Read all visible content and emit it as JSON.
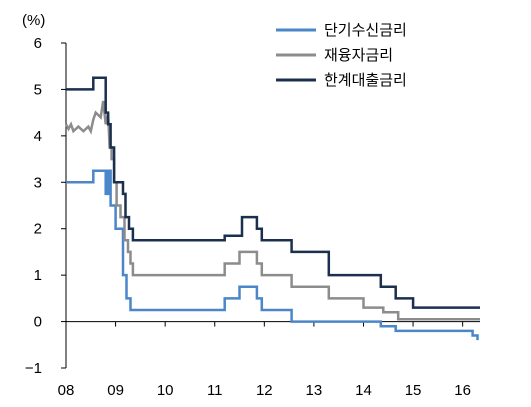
{
  "chart_data": {
    "type": "line",
    "title": "",
    "xlabel": "",
    "ylabel": "(%)",
    "ylim": [
      -1,
      6
    ],
    "xlim": [
      2008,
      2016.35
    ],
    "x_ticks": [
      2008,
      2009,
      2010,
      2011,
      2012,
      2013,
      2014,
      2015,
      2016
    ],
    "x_tick_labels": [
      "08",
      "09",
      "10",
      "11",
      "12",
      "13",
      "14",
      "15",
      "16"
    ],
    "y_ticks": [
      -1,
      0,
      1,
      2,
      3,
      4,
      5,
      6
    ],
    "y_tick_labels": [
      "−1",
      "0",
      "1",
      "2",
      "3",
      "4",
      "5",
      "6"
    ],
    "grid": false,
    "legend_position": "top-right",
    "series": [
      {
        "name": "단기수신금리",
        "color": "#4a86c8",
        "width": 2.5,
        "points": [
          [
            2008.0,
            3.0
          ],
          [
            2008.55,
            3.0
          ],
          [
            2008.55,
            3.25
          ],
          [
            2008.8,
            3.25
          ],
          [
            2008.8,
            2.75
          ],
          [
            2008.85,
            2.75
          ],
          [
            2008.85,
            3.25
          ],
          [
            2008.9,
            3.25
          ],
          [
            2008.9,
            2.5
          ],
          [
            2009.0,
            2.5
          ],
          [
            2009.0,
            2.0
          ],
          [
            2009.15,
            2.0
          ],
          [
            2009.15,
            1.0
          ],
          [
            2009.22,
            1.0
          ],
          [
            2009.22,
            0.5
          ],
          [
            2009.3,
            0.5
          ],
          [
            2009.3,
            0.25
          ],
          [
            2011.2,
            0.25
          ],
          [
            2011.2,
            0.5
          ],
          [
            2011.5,
            0.5
          ],
          [
            2011.5,
            0.75
          ],
          [
            2011.85,
            0.75
          ],
          [
            2011.85,
            0.5
          ],
          [
            2011.95,
            0.5
          ],
          [
            2011.95,
            0.25
          ],
          [
            2012.55,
            0.25
          ],
          [
            2012.55,
            0.0
          ],
          [
            2014.35,
            0.0
          ],
          [
            2014.35,
            -0.1
          ],
          [
            2014.65,
            -0.1
          ],
          [
            2014.65,
            -0.2
          ],
          [
            2016.2,
            -0.2
          ],
          [
            2016.2,
            -0.3
          ],
          [
            2016.3,
            -0.3
          ],
          [
            2016.3,
            -0.4
          ]
        ]
      },
      {
        "name": "재융자금리",
        "color": "#8c8c8c",
        "width": 2.5,
        "points": [
          [
            2008.0,
            4.25
          ],
          [
            2008.05,
            4.15
          ],
          [
            2008.1,
            4.25
          ],
          [
            2008.15,
            4.1
          ],
          [
            2008.25,
            4.2
          ],
          [
            2008.35,
            4.1
          ],
          [
            2008.45,
            4.2
          ],
          [
            2008.5,
            4.1
          ],
          [
            2008.55,
            4.35
          ],
          [
            2008.6,
            4.5
          ],
          [
            2008.7,
            4.4
          ],
          [
            2008.75,
            4.75
          ],
          [
            2008.8,
            4.25
          ],
          [
            2008.85,
            4.5
          ],
          [
            2008.88,
            3.75
          ],
          [
            2008.92,
            3.75
          ],
          [
            2008.92,
            3.5
          ],
          [
            2008.97,
            3.5
          ],
          [
            2008.97,
            3.0
          ],
          [
            2009.02,
            3.0
          ],
          [
            2009.02,
            2.5
          ],
          [
            2009.1,
            2.5
          ],
          [
            2009.1,
            2.25
          ],
          [
            2009.18,
            2.25
          ],
          [
            2009.18,
            1.75
          ],
          [
            2009.25,
            1.75
          ],
          [
            2009.25,
            1.5
          ],
          [
            2009.3,
            1.5
          ],
          [
            2009.3,
            1.25
          ],
          [
            2009.35,
            1.25
          ],
          [
            2009.35,
            1.0
          ],
          [
            2011.2,
            1.0
          ],
          [
            2011.2,
            1.25
          ],
          [
            2011.5,
            1.25
          ],
          [
            2011.5,
            1.5
          ],
          [
            2011.85,
            1.5
          ],
          [
            2011.85,
            1.25
          ],
          [
            2011.95,
            1.25
          ],
          [
            2011.95,
            1.0
          ],
          [
            2012.55,
            1.0
          ],
          [
            2012.55,
            0.75
          ],
          [
            2013.3,
            0.75
          ],
          [
            2013.3,
            0.5
          ],
          [
            2014.0,
            0.5
          ],
          [
            2014.0,
            0.3
          ],
          [
            2014.4,
            0.3
          ],
          [
            2014.4,
            0.2
          ],
          [
            2014.7,
            0.2
          ],
          [
            2014.7,
            0.05
          ],
          [
            2016.35,
            0.05
          ]
        ]
      },
      {
        "name": "한계대출금리",
        "color": "#1b2f4e",
        "width": 2.5,
        "points": [
          [
            2008.0,
            5.0
          ],
          [
            2008.55,
            5.0
          ],
          [
            2008.55,
            5.25
          ],
          [
            2008.8,
            5.25
          ],
          [
            2008.8,
            4.5
          ],
          [
            2008.85,
            4.5
          ],
          [
            2008.85,
            4.25
          ],
          [
            2008.9,
            4.25
          ],
          [
            2008.9,
            3.75
          ],
          [
            2008.97,
            3.75
          ],
          [
            2008.97,
            3.0
          ],
          [
            2009.15,
            3.0
          ],
          [
            2009.15,
            2.75
          ],
          [
            2009.2,
            2.75
          ],
          [
            2009.2,
            2.25
          ],
          [
            2009.27,
            2.25
          ],
          [
            2009.27,
            2.0
          ],
          [
            2009.35,
            2.0
          ],
          [
            2009.35,
            1.75
          ],
          [
            2011.2,
            1.75
          ],
          [
            2011.2,
            1.85
          ],
          [
            2011.55,
            1.85
          ],
          [
            2011.55,
            2.25
          ],
          [
            2011.85,
            2.25
          ],
          [
            2011.85,
            2.0
          ],
          [
            2011.95,
            2.0
          ],
          [
            2011.95,
            1.75
          ],
          [
            2012.55,
            1.75
          ],
          [
            2012.55,
            1.5
          ],
          [
            2013.3,
            1.5
          ],
          [
            2013.3,
            1.0
          ],
          [
            2014.35,
            1.0
          ],
          [
            2014.35,
            0.75
          ],
          [
            2014.65,
            0.75
          ],
          [
            2014.65,
            0.5
          ],
          [
            2015.0,
            0.5
          ],
          [
            2015.0,
            0.3
          ],
          [
            2016.35,
            0.3
          ]
        ]
      }
    ]
  }
}
